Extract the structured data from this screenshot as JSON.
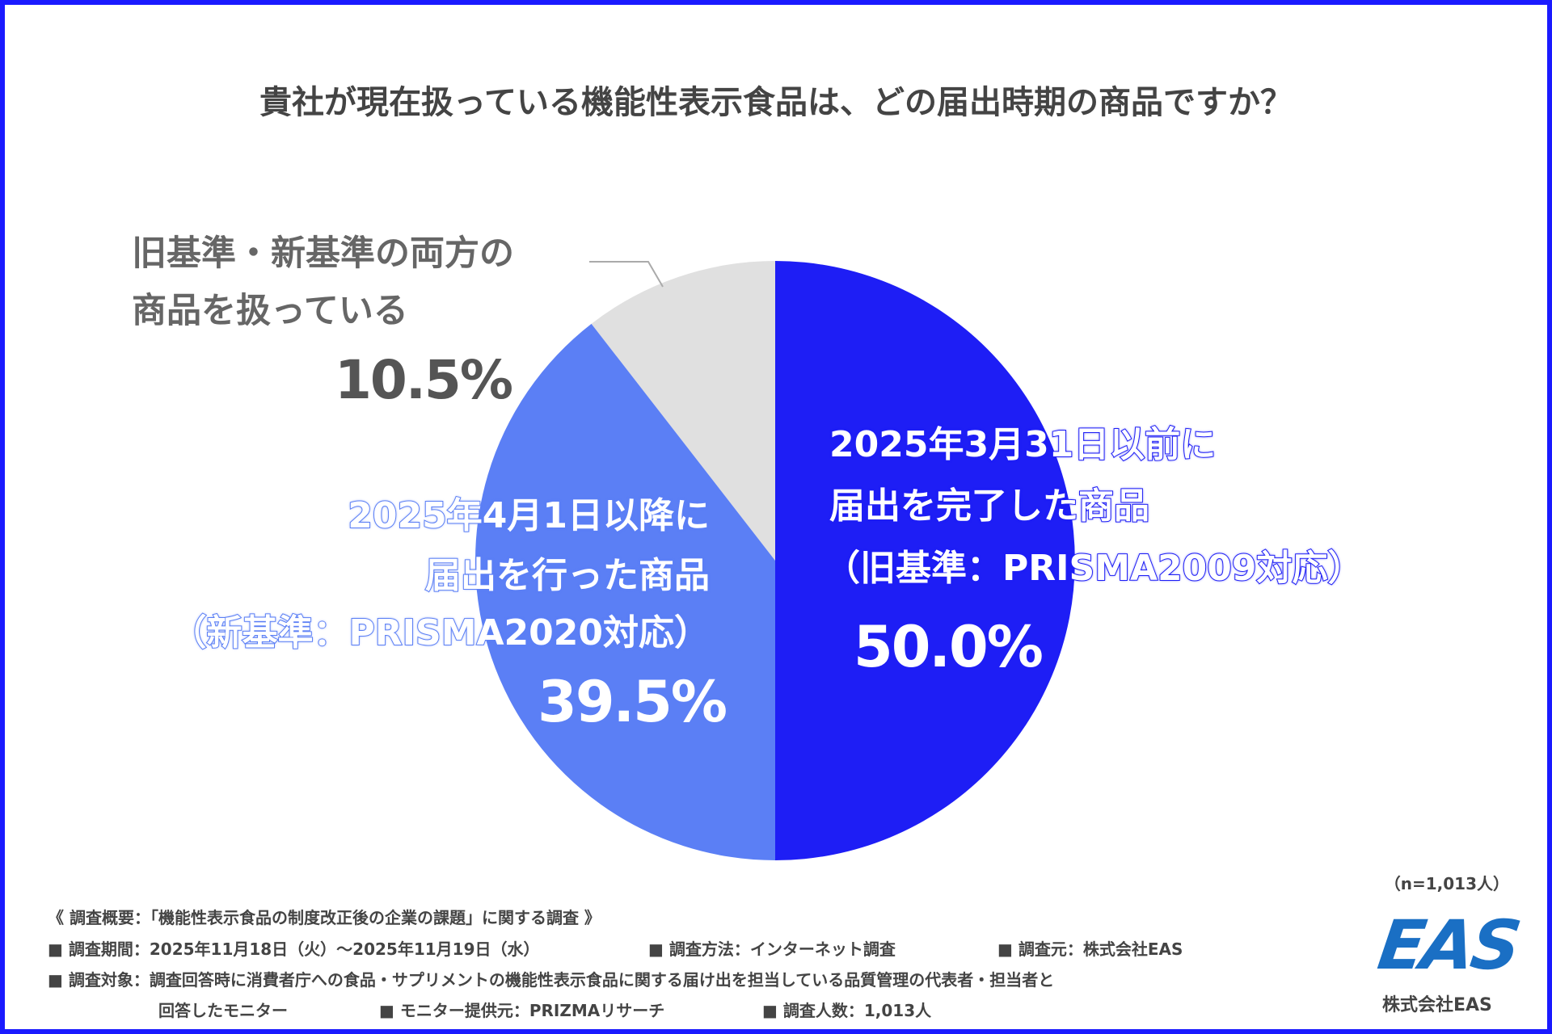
{
  "chart_data": {
    "type": "pie",
    "title": "貴社が現在扱っている機能性表示食品は、どの届出時期の商品ですか？",
    "slices": [
      {
        "label": "2025年3月31日以前に届出を完了した商品（旧基準：PRISMA2009対応）",
        "lines": [
          "2025年3月31日以前に",
          "届出を完了した商品",
          "（旧基準：PRISMA2009対応）"
        ],
        "value": 50.0,
        "value_label": "50.0%",
        "color": "#1e1ef5"
      },
      {
        "label": "2025年4月1日以降に届出を行った商品（新基準：PRISMA2020対応）",
        "lines": [
          "2025年4月1日以降に",
          "届出を行った商品",
          "（新基準：PRISMA2020対応）"
        ],
        "value": 39.5,
        "value_label": "39.5%",
        "color": "#5b7ff5"
      },
      {
        "label": "旧基準・新基準の両方の商品を扱っている",
        "lines": [
          "旧基準・新基準の両方の",
          "商品を扱っている"
        ],
        "value": 10.5,
        "value_label": "10.5%",
        "color": "#e0e0e0"
      }
    ],
    "start": "top",
    "direction": "clockwise",
    "sample": "（n=1,013人）"
  },
  "footer": {
    "heading": "《 調査概要：「機能性表示食品の制度改正後の企業の課題」に関する調査 》",
    "period": "■ 調査期間：2025年11月18日（火）～2025年11月19日（水）",
    "method": "■ 調査方法：インターネット調査",
    "source": "■ 調査元：株式会社EAS",
    "target": "■ 調査対象：調査回答時に消費者庁への食品・サプリメントの機能性表示食品に関する届け出を担当している品質管理の代表者・担当者と",
    "target_cont": "回答したモニター",
    "provider": "■ モニター提供元：PRIZMAリサーチ",
    "count": "■ 調査人数：1,013人"
  },
  "logo": {
    "mark": "EAS",
    "company": "株式会社EAS",
    "color": "#1a6fc4"
  },
  "border_color": "#1a1aff"
}
